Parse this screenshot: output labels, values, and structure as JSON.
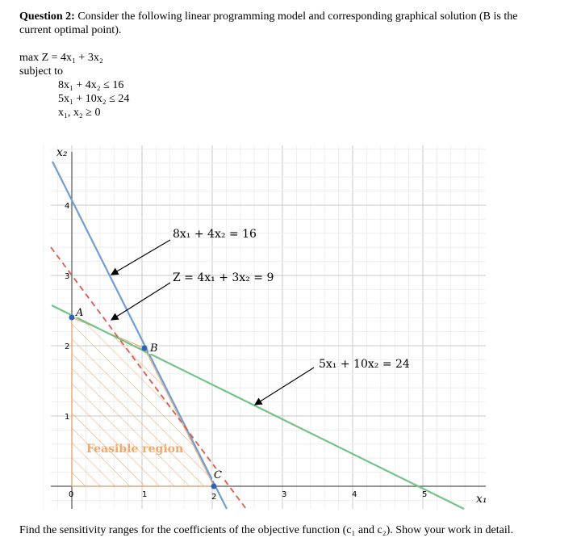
{
  "question": {
    "label": "Question 2:",
    "text": "Consider the following linear programming model and corresponding graphical solution (B is the current optimal point)."
  },
  "model": {
    "objective": "max Z = 4x₁ + 3x₂",
    "subject_to": "subject to",
    "constraints": [
      "8x₁ + 4x₂ ≤ 16",
      "5x₁ + 10x₂ ≤ 24",
      "x₁, x₂ ≥ 0"
    ]
  },
  "graph": {
    "x_axis_label": "x₁",
    "y_axis_label": "x₂",
    "x_ticks": [
      "0",
      "1",
      "2",
      "3",
      "4",
      "5"
    ],
    "y_ticks": [
      "1",
      "2",
      "3",
      "4"
    ],
    "annotations": {
      "constraint1": "8x₁ + 4x₂ = 16",
      "objective_line": "Z = 4x₁ + 3x₂ = 9",
      "constraint2": "5x₁ + 10x₂ = 24"
    },
    "points": {
      "a": "A",
      "b": "B",
      "c": "C"
    },
    "region_label": "Feasible region",
    "colors": {
      "constraint1": "#6e9fd2",
      "constraint2": "#72c383",
      "objective": "#e05a4e",
      "hatch": "#f3a86a",
      "point": "#2f64b3",
      "grid_major": "#c8c8c8",
      "grid_minor": "#ececec"
    }
  },
  "footer": "Find the sensitivity ranges for the coefficients of the objective function (c₁ and c₂). Show your work in detail."
}
